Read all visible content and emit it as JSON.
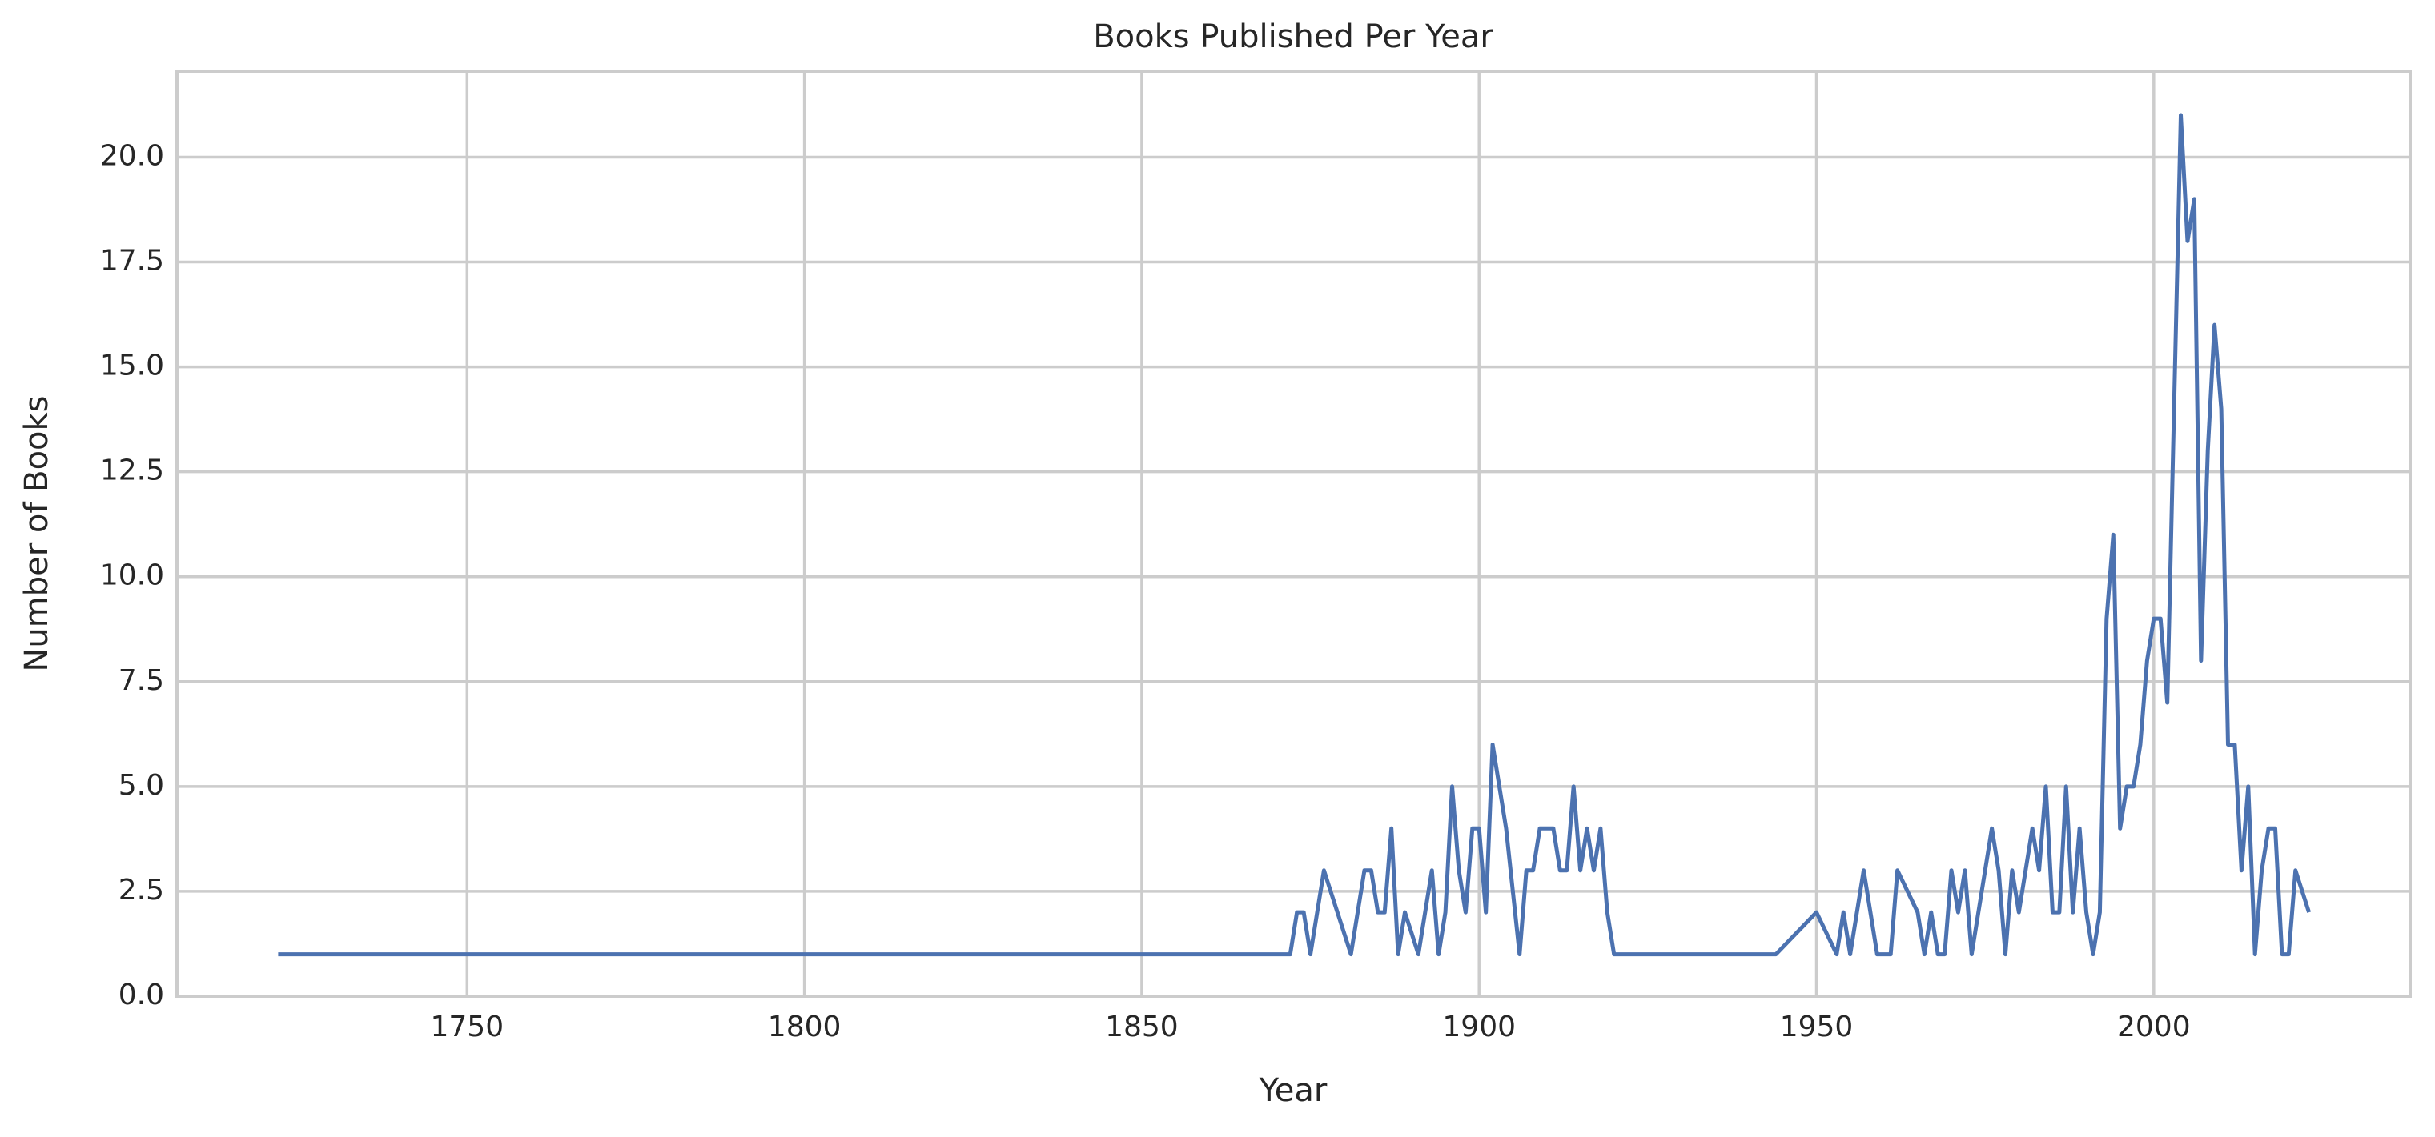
{
  "chart_data": {
    "type": "line",
    "title": "Books Published Per Year",
    "xlabel": "Year",
    "ylabel": "Number of Books",
    "x": [
      1722,
      1872,
      1873,
      1874,
      1875,
      1877,
      1881,
      1883,
      1884,
      1885,
      1886,
      1887,
      1888,
      1889,
      1891,
      1893,
      1894,
      1895,
      1896,
      1897,
      1898,
      1899,
      1900,
      1901,
      1902,
      1904,
      1906,
      1907,
      1908,
      1909,
      1911,
      1912,
      1913,
      1914,
      1915,
      1916,
      1917,
      1918,
      1919,
      1920,
      1944,
      1950,
      1953,
      1954,
      1955,
      1957,
      1959,
      1961,
      1962,
      1965,
      1966,
      1967,
      1968,
      1969,
      1970,
      1971,
      1972,
      1973,
      1976,
      1977,
      1978,
      1979,
      1980,
      1982,
      1983,
      1984,
      1985,
      1986,
      1987,
      1988,
      1989,
      1990,
      1991,
      1992,
      1993,
      1994,
      1995,
      1996,
      1997,
      1998,
      1999,
      2000,
      2001,
      2002,
      2004,
      2005,
      2006,
      2007,
      2008,
      2009,
      2010,
      2011,
      2012,
      2013,
      2014,
      2015,
      2016,
      2017,
      2018,
      2019,
      2020,
      2021,
      2023
    ],
    "series": [
      {
        "name": "Books",
        "color": "#4c72b0",
        "values": [
          1,
          1,
          2,
          2,
          1,
          3,
          1,
          3,
          3,
          2,
          2,
          4,
          1,
          2,
          1,
          3,
          1,
          2,
          5,
          3,
          2,
          4,
          4,
          2,
          6,
          4,
          1,
          3,
          3,
          4,
          4,
          3,
          3,
          5,
          3,
          4,
          3,
          4,
          2,
          1,
          1,
          2,
          1,
          2,
          1,
          3,
          1,
          1,
          3,
          2,
          1,
          2,
          1,
          1,
          3,
          2,
          3,
          1,
          4,
          3,
          1,
          3,
          2,
          4,
          3,
          5,
          2,
          2,
          5,
          2,
          4,
          2,
          1,
          2,
          9,
          11,
          4,
          5,
          5,
          6,
          8,
          9,
          9,
          7,
          21,
          18,
          19,
          8,
          13,
          16,
          14,
          6,
          6,
          3,
          5,
          1,
          3,
          4,
          4,
          1,
          1,
          3,
          2
        ]
      }
    ],
    "xlim": [
      1707,
      2038
    ],
    "ylim": [
      0,
      22.05
    ],
    "xticks": [
      1750,
      1800,
      1850,
      1900,
      1950,
      2000
    ],
    "yticks": [
      {
        "value": 0,
        "label": "0.0"
      },
      2.5,
      {
        "value": 5,
        "label": "5.0"
      },
      7.5,
      {
        "value": 10,
        "label": "10.0"
      },
      12.5,
      {
        "value": 15,
        "label": "15.0"
      },
      17.5,
      {
        "value": 20,
        "label": "20.0"
      }
    ],
    "grid": true
  }
}
